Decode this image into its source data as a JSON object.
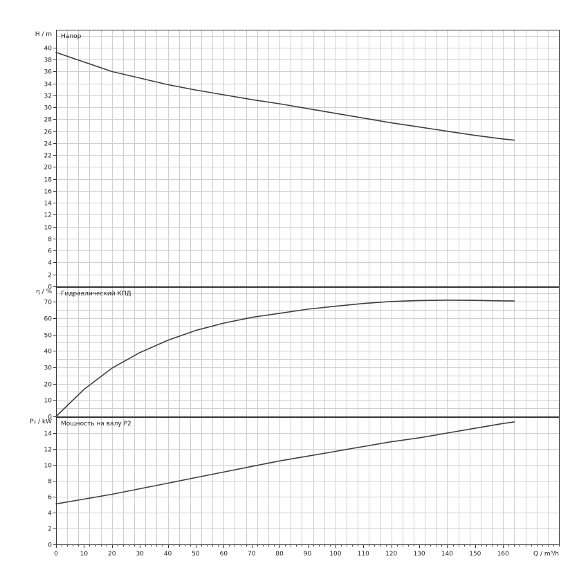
{
  "chart_data": [
    {
      "type": "line",
      "title": "Напор",
      "ylabel": "H / m",
      "xlabel": "",
      "xlim": [
        0,
        180
      ],
      "ylim": [
        0,
        43
      ],
      "yticks": [
        0,
        2,
        4,
        6,
        8,
        10,
        12,
        14,
        16,
        18,
        20,
        22,
        24,
        26,
        28,
        30,
        32,
        34,
        36,
        38,
        40
      ],
      "grid": true,
      "series": [
        {
          "color": "#3a3f4a",
          "x": [
            0,
            10,
            20,
            30,
            40,
            50,
            60,
            70,
            80,
            90,
            100,
            110,
            120,
            130,
            140,
            150,
            160,
            164
          ],
          "y": [
            39.2,
            37.6,
            36.0,
            34.9,
            33.8,
            32.9,
            32.1,
            31.3,
            30.6,
            29.8,
            29.0,
            28.2,
            27.4,
            26.7,
            26.0,
            25.3,
            24.7,
            24.5
          ]
        }
      ]
    },
    {
      "type": "line",
      "title": "Гидравлический КПД",
      "ylabel": "η / %",
      "xlabel": "",
      "xlim": [
        0,
        180
      ],
      "ylim": [
        0,
        79
      ],
      "yticks": [
        0,
        10,
        20,
        30,
        40,
        50,
        60,
        70
      ],
      "grid": true,
      "series": [
        {
          "color": "#3a3f4a",
          "x": [
            0,
            10,
            20,
            30,
            40,
            50,
            60,
            70,
            80,
            90,
            100,
            110,
            120,
            130,
            140,
            150,
            160,
            164
          ],
          "y": [
            0,
            16.5,
            29.5,
            39.0,
            46.5,
            52.5,
            57.0,
            60.5,
            63.0,
            65.5,
            67.3,
            69.0,
            70.2,
            70.8,
            71.0,
            70.9,
            70.6,
            70.5
          ]
        }
      ]
    },
    {
      "type": "line",
      "title": "Мощность на валу P2",
      "ylabel": "P₂ / kW",
      "xlabel": "Q / m³/h",
      "xlim": [
        0,
        180
      ],
      "xticks": [
        0,
        10,
        20,
        30,
        40,
        50,
        60,
        70,
        80,
        90,
        100,
        110,
        120,
        130,
        140,
        150,
        160
      ],
      "ylim": [
        0,
        16
      ],
      "yticks": [
        0,
        2,
        4,
        6,
        8,
        10,
        12,
        14
      ],
      "grid": true,
      "series": [
        {
          "color": "#3a3f4a",
          "x": [
            0,
            10,
            20,
            30,
            40,
            50,
            60,
            70,
            80,
            90,
            100,
            110,
            120,
            130,
            140,
            150,
            160,
            164
          ],
          "y": [
            5.1,
            5.7,
            6.3,
            7.0,
            7.7,
            8.4,
            9.1,
            9.8,
            10.5,
            11.1,
            11.7,
            12.3,
            12.9,
            13.4,
            14.0,
            14.6,
            15.2,
            15.4
          ]
        }
      ]
    }
  ]
}
